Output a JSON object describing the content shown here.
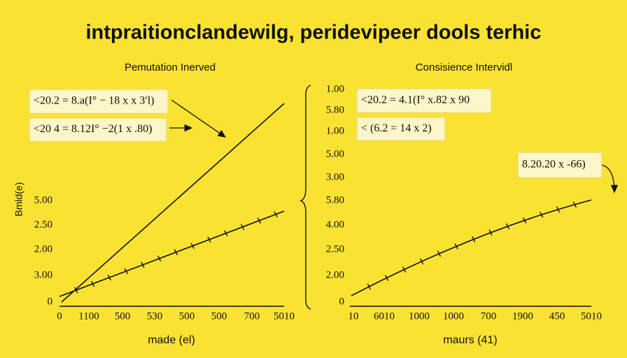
{
  "title": "intpraitionclandewilg, peridevipeer dools terhic",
  "panels": [
    {
      "subtitle": "Pemutation Inerved",
      "y_label": "Bmld(e)",
      "x_label": "made (el)",
      "y_labels": [
        "5.00",
        "2.50",
        "2.00",
        "3.00",
        "0"
      ],
      "x_labels": [
        "0",
        "1100",
        "500",
        "530",
        "500",
        "500",
        "700",
        "5010"
      ],
      "annotations": [
        "<20.2 = 8.a(I° − 18 x x 3ʹl)",
        "<20 4 = 8.12I° −2(1 x .80)"
      ]
    },
    {
      "subtitle": "Consisience Intervidl",
      "x_label": "maurs (41)",
      "y_labels": [
        "1.00",
        "5.80",
        "1.00",
        "5.00",
        "3.00",
        "5.80",
        "4.00",
        "2.50",
        "2.00",
        "0"
      ],
      "x_labels": [
        "10",
        "6010",
        "1000",
        "1000",
        "700",
        "1900",
        "450",
        "5010"
      ],
      "annotations": [
        "<20.2 = 4.1(I° x.82 x 90",
        "< (6.2 = 14 x 2)",
        "8.20.20 x -66)"
      ]
    }
  ]
}
